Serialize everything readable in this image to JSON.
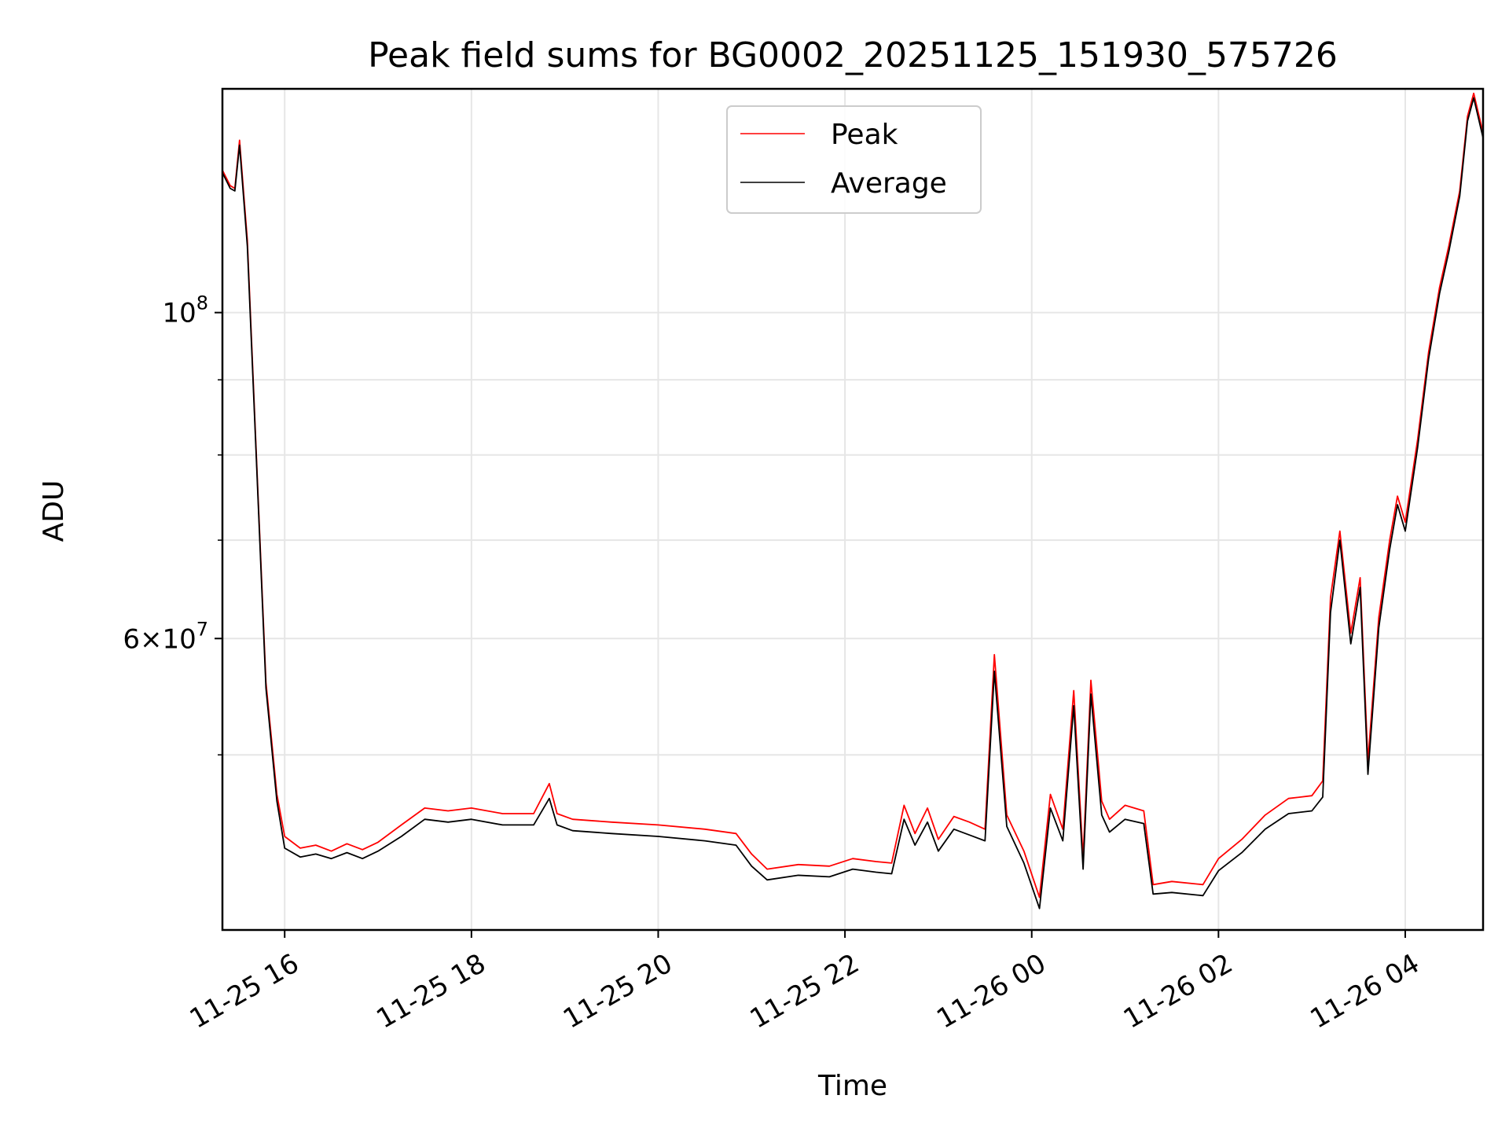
{
  "chart_data": {
    "type": "line",
    "title": "Peak field sums for BG0002_20251125_151930_575726",
    "xlabel": "Time",
    "ylabel": "ADU",
    "y_scale": "log",
    "ylim": [
      38000000,
      142000000
    ],
    "xlim": [
      "2025-11-25 15:20",
      "2025-11-26 04:50"
    ],
    "x_tick_labels": [
      {
        "t": "2025-11-25 16:00",
        "label": "11-25 16"
      },
      {
        "t": "2025-11-25 18:00",
        "label": "11-25 18"
      },
      {
        "t": "2025-11-25 20:00",
        "label": "11-25 20"
      },
      {
        "t": "2025-11-25 22:00",
        "label": "11-25 22"
      },
      {
        "t": "2025-11-26 00:00",
        "label": "11-26 00"
      },
      {
        "t": "2025-11-26 02:00",
        "label": "11-26 02"
      },
      {
        "t": "2025-11-26 04:00",
        "label": "11-26 04"
      }
    ],
    "y_tick_labels": [
      {
        "value": 100000000,
        "mantissa": "10",
        "exponent": "8"
      },
      {
        "value": 60000000,
        "mantissa": "6×10",
        "exponent": "7"
      }
    ],
    "y_minor_ticks": [
      50000000,
      70000000,
      80000000,
      90000000
    ],
    "grid": true,
    "legend_position": "top-center",
    "series": [
      {
        "name": "Peak",
        "color": "#ff0000",
        "x": [
          "2025-11-25 15:20",
          "2025-11-25 15:25",
          "2025-11-25 15:28",
          "2025-11-25 15:31",
          "2025-11-25 15:36",
          "2025-11-25 15:42",
          "2025-11-25 15:48",
          "2025-11-25 15:55",
          "2025-11-25 16:00",
          "2025-11-25 16:10",
          "2025-11-25 16:20",
          "2025-11-25 16:30",
          "2025-11-25 16:40",
          "2025-11-25 16:50",
          "2025-11-25 17:00",
          "2025-11-25 17:15",
          "2025-11-25 17:30",
          "2025-11-25 17:45",
          "2025-11-25 18:00",
          "2025-11-25 18:20",
          "2025-11-25 18:40",
          "2025-11-25 18:50",
          "2025-11-25 18:55",
          "2025-11-25 19:05",
          "2025-11-25 19:30",
          "2025-11-25 20:00",
          "2025-11-25 20:30",
          "2025-11-25 20:50",
          "2025-11-25 21:00",
          "2025-11-25 21:10",
          "2025-11-25 21:30",
          "2025-11-25 21:50",
          "2025-11-25 22:05",
          "2025-11-25 22:20",
          "2025-11-25 22:30",
          "2025-11-25 22:38",
          "2025-11-25 22:45",
          "2025-11-25 22:53",
          "2025-11-25 23:00",
          "2025-11-25 23:10",
          "2025-11-25 23:20",
          "2025-11-25 23:30",
          "2025-11-25 23:36",
          "2025-11-25 23:44",
          "2025-11-25 23:55",
          "2025-11-26 00:05",
          "2025-11-26 00:12",
          "2025-11-26 00:20",
          "2025-11-26 00:27",
          "2025-11-26 00:33",
          "2025-11-26 00:38",
          "2025-11-26 00:45",
          "2025-11-26 00:50",
          "2025-11-26 01:00",
          "2025-11-26 01:12",
          "2025-11-26 01:18",
          "2025-11-26 01:30",
          "2025-11-26 01:50",
          "2025-11-26 02:00",
          "2025-11-26 02:15",
          "2025-11-26 02:30",
          "2025-11-26 02:45",
          "2025-11-26 03:00",
          "2025-11-26 03:07",
          "2025-11-26 03:12",
          "2025-11-26 03:18",
          "2025-11-26 03:25",
          "2025-11-26 03:31",
          "2025-11-26 03:36",
          "2025-11-26 03:43",
          "2025-11-26 03:50",
          "2025-11-26 03:55",
          "2025-11-26 04:00",
          "2025-11-26 04:08",
          "2025-11-26 04:15",
          "2025-11-26 04:22",
          "2025-11-26 04:28",
          "2025-11-26 04:35",
          "2025-11-26 04:40",
          "2025-11-26 04:44",
          "2025-11-26 04:50"
        ],
        "values": [
          125000000,
          122000000,
          121500000,
          131000000,
          112000000,
          79000000,
          56000000,
          47000000,
          44000000,
          43200000,
          43400000,
          43000000,
          43500000,
          43100000,
          43600000,
          44800000,
          46000000,
          45800000,
          46000000,
          45600000,
          45600000,
          47800000,
          45600000,
          45200000,
          45000000,
          44800000,
          44500000,
          44200000,
          42800000,
          41800000,
          42100000,
          42000000,
          42500000,
          42300000,
          42200000,
          46200000,
          44200000,
          46000000,
          43800000,
          45400000,
          45000000,
          44500000,
          58500000,
          45500000,
          43000000,
          40000000,
          47000000,
          44500000,
          55300000,
          42500000,
          56200000,
          46500000,
          45200000,
          46200000,
          45800000,
          40800000,
          41000000,
          40800000,
          42500000,
          43800000,
          45500000,
          46700000,
          46900000,
          48000000,
          64000000,
          71000000,
          60500000,
          66000000,
          49500000,
          62000000,
          70000000,
          75000000,
          72000000,
          82000000,
          94000000,
          104000000,
          111000000,
          121000000,
          136000000,
          141000000,
          132500000
        ]
      },
      {
        "name": "Average",
        "color": "#000000",
        "x": [
          "2025-11-25 15:20",
          "2025-11-25 15:25",
          "2025-11-25 15:28",
          "2025-11-25 15:31",
          "2025-11-25 15:36",
          "2025-11-25 15:42",
          "2025-11-25 15:48",
          "2025-11-25 15:55",
          "2025-11-25 16:00",
          "2025-11-25 16:10",
          "2025-11-25 16:20",
          "2025-11-25 16:30",
          "2025-11-25 16:40",
          "2025-11-25 16:50",
          "2025-11-25 17:00",
          "2025-11-25 17:15",
          "2025-11-25 17:30",
          "2025-11-25 17:45",
          "2025-11-25 18:00",
          "2025-11-25 18:20",
          "2025-11-25 18:40",
          "2025-11-25 18:50",
          "2025-11-25 18:55",
          "2025-11-25 19:05",
          "2025-11-25 19:30",
          "2025-11-25 20:00",
          "2025-11-25 20:30",
          "2025-11-25 20:50",
          "2025-11-25 21:00",
          "2025-11-25 21:10",
          "2025-11-25 21:30",
          "2025-11-25 21:50",
          "2025-11-25 22:05",
          "2025-11-25 22:20",
          "2025-11-25 22:30",
          "2025-11-25 22:38",
          "2025-11-25 22:45",
          "2025-11-25 22:53",
          "2025-11-25 23:00",
          "2025-11-25 23:10",
          "2025-11-25 23:20",
          "2025-11-25 23:30",
          "2025-11-25 23:36",
          "2025-11-25 23:44",
          "2025-11-25 23:55",
          "2025-11-26 00:05",
          "2025-11-26 00:12",
          "2025-11-26 00:20",
          "2025-11-26 00:27",
          "2025-11-26 00:33",
          "2025-11-26 00:38",
          "2025-11-26 00:45",
          "2025-11-26 00:50",
          "2025-11-26 01:00",
          "2025-11-26 01:12",
          "2025-11-26 01:18",
          "2025-11-26 01:30",
          "2025-11-26 01:50",
          "2025-11-26 02:00",
          "2025-11-26 02:15",
          "2025-11-26 02:30",
          "2025-11-26 02:45",
          "2025-11-26 03:00",
          "2025-11-26 03:07",
          "2025-11-26 03:12",
          "2025-11-26 03:18",
          "2025-11-26 03:25",
          "2025-11-26 03:31",
          "2025-11-26 03:36",
          "2025-11-26 03:43",
          "2025-11-26 03:50",
          "2025-11-26 03:55",
          "2025-11-26 04:00",
          "2025-11-26 04:08",
          "2025-11-26 04:15",
          "2025-11-26 04:22",
          "2025-11-26 04:28",
          "2025-11-26 04:35",
          "2025-11-26 04:40",
          "2025-11-26 04:44",
          "2025-11-26 04:50"
        ],
        "values": [
          124500000,
          121500000,
          121000000,
          130000000,
          111000000,
          78500000,
          55500000,
          46500000,
          43200000,
          42600000,
          42800000,
          42500000,
          42900000,
          42500000,
          43000000,
          44000000,
          45200000,
          45000000,
          45200000,
          44800000,
          44800000,
          46700000,
          44800000,
          44400000,
          44200000,
          44000000,
          43700000,
          43400000,
          42000000,
          41100000,
          41400000,
          41300000,
          41800000,
          41600000,
          41500000,
          45200000,
          43400000,
          45000000,
          43000000,
          44500000,
          44100000,
          43700000,
          57000000,
          44700000,
          42200000,
          39300000,
          46000000,
          43700000,
          54000000,
          41800000,
          55000000,
          45500000,
          44300000,
          45200000,
          44900000,
          40200000,
          40300000,
          40100000,
          41700000,
          42900000,
          44500000,
          45600000,
          45800000,
          46800000,
          62500000,
          70000000,
          59500000,
          65000000,
          48500000,
          61000000,
          69000000,
          74000000,
          71000000,
          81000000,
          93000000,
          103000000,
          110000000,
          120000000,
          135000000,
          140000000,
          131500000
        ]
      }
    ]
  }
}
